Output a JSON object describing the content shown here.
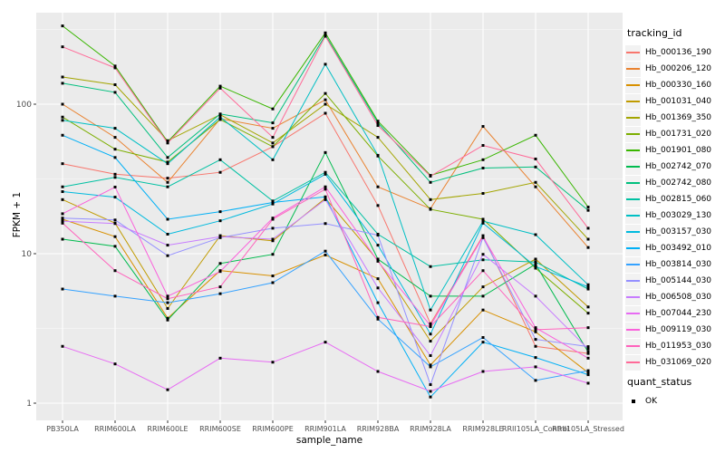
{
  "chart_data": {
    "type": "line",
    "title": "",
    "xlabel": "sample_name",
    "ylabel": "FPKM + 1",
    "y_scale": "log10",
    "y_ticks": [
      1,
      10,
      100
    ],
    "ylim": [
      0.77,
      410
    ],
    "grid": "on",
    "legend_position": "right",
    "legend_title": "tracking_id",
    "quant_legend_title": "quant_status",
    "quant_legend_items": [
      {
        "label": "OK",
        "marker": "black-square"
      }
    ],
    "marker": {
      "shape": "square",
      "color": "#000000",
      "size": 3
    },
    "panel_bg": "#EBEBEB",
    "grid_color": "#FFFFFF",
    "tick_label_color": "#4D4D4D",
    "categories": [
      "PB350LA",
      "RRIM600LA",
      "RRIM600LE",
      "RRIM600SE",
      "RRIM600PE",
      "RRIM901LA",
      "RRIM928BA",
      "RRIM928LA",
      "RRIM928LE",
      "RRII105LA_Control",
      "RRII105LA_Stressed"
    ],
    "series": [
      {
        "name": "Hb_000136_190",
        "color": "#F8766D",
        "values": [
          40,
          34,
          32,
          35,
          52,
          87,
          21,
          3.4,
          13.2,
          2.4,
          2.15
        ]
      },
      {
        "name": "Hb_000206_120",
        "color": "#EA8331",
        "values": [
          100,
          60,
          30,
          80,
          69,
          107,
          28,
          20,
          71,
          28,
          11
        ]
      },
      {
        "name": "Hb_000330_160",
        "color": "#D89000",
        "values": [
          17,
          13,
          3.7,
          7.7,
          7.1,
          9.8,
          6.8,
          1.8,
          4.2,
          3.0,
          1.6
        ]
      },
      {
        "name": "Hb_001031_040",
        "color": "#C09B00",
        "values": [
          23,
          16,
          4.3,
          13.2,
          12.2,
          23.5,
          9.0,
          2.6,
          6.0,
          9.2,
          4.4
        ]
      },
      {
        "name": "Hb_001369_350",
        "color": "#A3A500",
        "values": [
          152,
          135,
          57,
          85,
          55,
          100,
          60,
          23,
          25.3,
          30,
          12.5
        ]
      },
      {
        "name": "Hb_001731_020",
        "color": "#7CAE00",
        "values": [
          82,
          50,
          41,
          79,
          52,
          118,
          45,
          19.8,
          17,
          8.0,
          4.0
        ]
      },
      {
        "name": "Hb_001901_080",
        "color": "#39B600",
        "values": [
          334,
          180,
          56,
          132,
          93,
          300,
          77,
          33.4,
          42.5,
          62,
          20.5
        ]
      },
      {
        "name": "Hb_002742_070",
        "color": "#00BB4E",
        "values": [
          12.5,
          11.2,
          3.6,
          8.6,
          9.9,
          47.5,
          9.2,
          5.2,
          5.2,
          8.5,
          2.2
        ]
      },
      {
        "name": "Hb_002742_080",
        "color": "#00BF7D",
        "values": [
          138,
          120,
          44,
          86,
          75,
          290,
          75,
          30,
          37.4,
          38,
          19.5
        ]
      },
      {
        "name": "Hb_002815_060",
        "color": "#00C1A3",
        "values": [
          28,
          32.4,
          28,
          42.5,
          22.5,
          35,
          13.5,
          8.2,
          9.1,
          8.8,
          5.8
        ]
      },
      {
        "name": "Hb_003029_130",
        "color": "#00BFC4",
        "values": [
          78,
          69,
          40,
          82,
          42.5,
          185,
          45.5,
          4.2,
          16.5,
          13.4,
          6.2
        ]
      },
      {
        "name": "Hb_003157_030",
        "color": "#00BADE",
        "values": [
          26,
          23.9,
          13.5,
          16.6,
          21.5,
          34,
          11.4,
          2.9,
          16,
          8.2,
          6.0
        ]
      },
      {
        "name": "Hb_003492_010",
        "color": "#00B0F6",
        "values": [
          62,
          44,
          17,
          19.1,
          22,
          24,
          4.7,
          1.1,
          2.56,
          2.02,
          1.55
        ]
      },
      {
        "name": "Hb_003814_030",
        "color": "#35A2FF",
        "values": [
          5.8,
          5.2,
          4.7,
          5.4,
          6.4,
          10.4,
          3.65,
          1.75,
          2.75,
          1.42,
          1.65
        ]
      },
      {
        "name": "Hb_005144_030",
        "color": "#9590FF",
        "values": [
          17.3,
          16.8,
          9.7,
          12.8,
          14.8,
          15.9,
          13.3,
          1.33,
          12.8,
          2.67,
          2.39
        ]
      },
      {
        "name": "Hb_006508_030",
        "color": "#C77CFF",
        "values": [
          16.5,
          15.9,
          11.4,
          13.0,
          12.5,
          23,
          5.9,
          2.08,
          9.9,
          5.2,
          2.3
        ]
      },
      {
        "name": "Hb_007044_230",
        "color": "#E76BF3",
        "values": [
          2.4,
          1.83,
          1.23,
          2.0,
          1.88,
          2.56,
          1.63,
          1.2,
          1.63,
          1.75,
          1.36
        ]
      },
      {
        "name": "Hb_009119_030",
        "color": "#FA62DB",
        "values": [
          18.5,
          27.9,
          5.2,
          7.6,
          17.3,
          28,
          8.9,
          3.3,
          13,
          3.2,
          2.0
        ]
      },
      {
        "name": "Hb_011953_030",
        "color": "#FF62BC",
        "values": [
          16,
          7.7,
          5.0,
          6.0,
          17.0,
          27,
          3.75,
          3.25,
          7.7,
          3.1,
          3.2
        ]
      },
      {
        "name": "Hb_031069_020",
        "color": "#FF6A98",
        "values": [
          242,
          175,
          55,
          128,
          60,
          285,
          72,
          33,
          53,
          43,
          14.8
        ]
      }
    ]
  }
}
